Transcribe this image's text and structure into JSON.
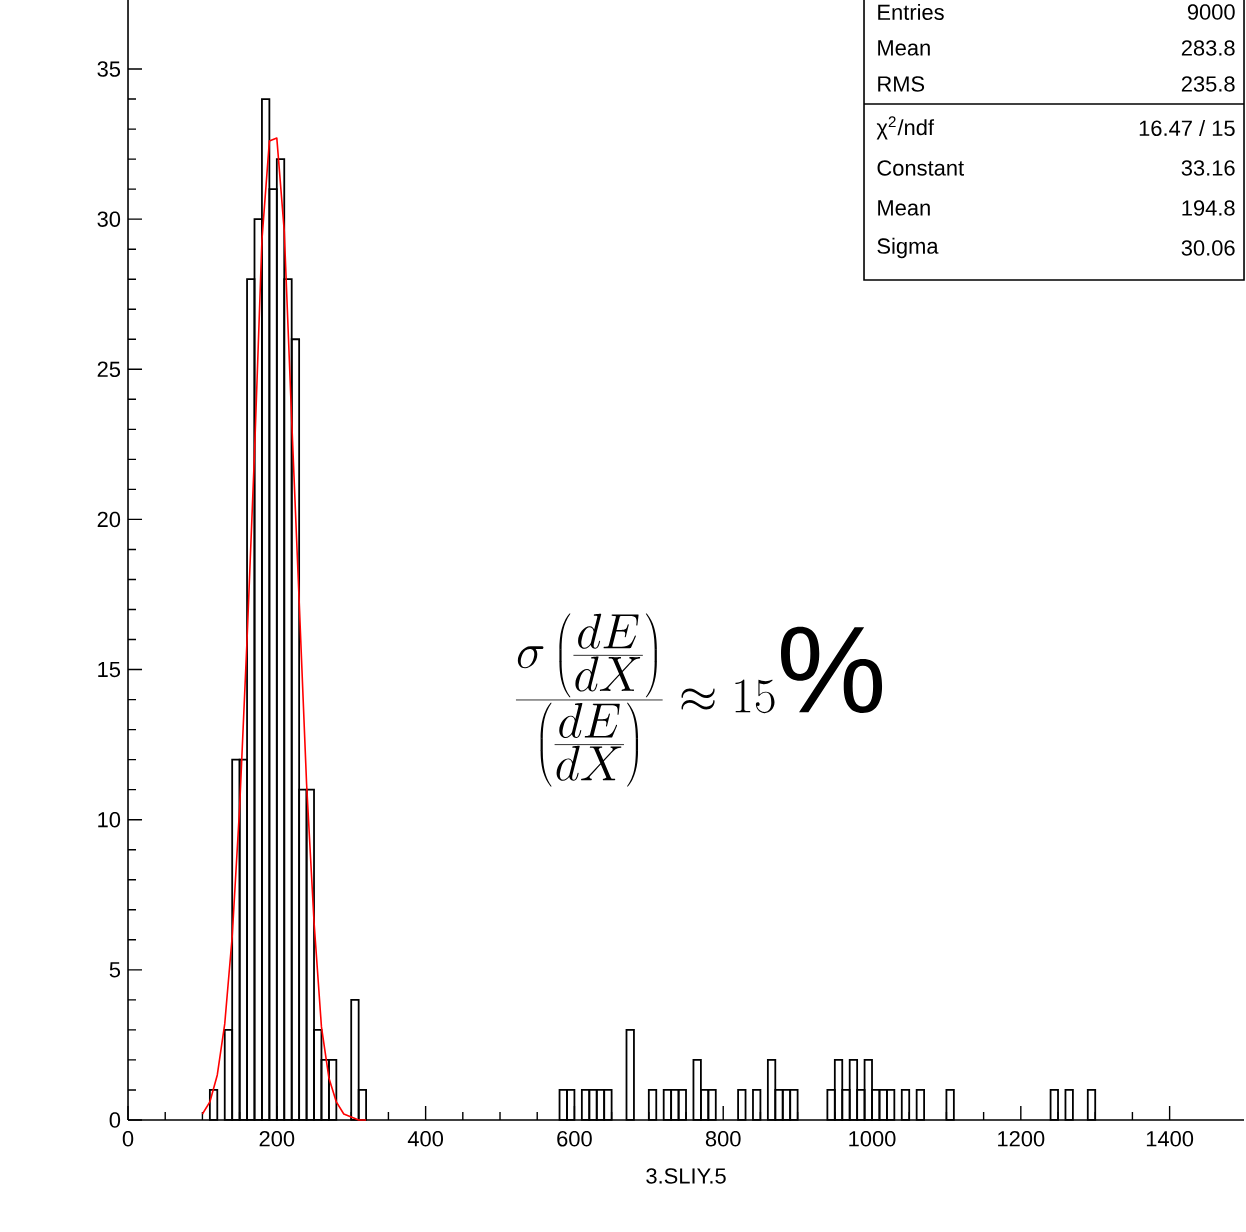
{
  "chart_data": {
    "type": "histogram",
    "xlabel": "3.SLIY.5",
    "bins": [
      110,
      120,
      130,
      140,
      150,
      160,
      170,
      180,
      190,
      200,
      210,
      220,
      230,
      240,
      250,
      260,
      270,
      280,
      290,
      300,
      310,
      320,
      330,
      340,
      350,
      360,
      370,
      380,
      390,
      400,
      410,
      420,
      430,
      440,
      450,
      460,
      470,
      480,
      490,
      500,
      510,
      520,
      530,
      540,
      550,
      560,
      570,
      580,
      590,
      600,
      610,
      620,
      630,
      640,
      650,
      660,
      670,
      680,
      690,
      700,
      710,
      720,
      730,
      740,
      750,
      760,
      770,
      780,
      790,
      800,
      810,
      820,
      830,
      840,
      850,
      860,
      870,
      880,
      890,
      900,
      910,
      920,
      930,
      940,
      950,
      960,
      970,
      980,
      990,
      1000,
      1010,
      1020,
      1030,
      1040,
      1050,
      1060,
      1070,
      1080,
      1090,
      1100,
      1110,
      1120,
      1130,
      1140,
      1150,
      1160,
      1170,
      1180,
      1190,
      1200,
      1210,
      1220,
      1230,
      1240,
      1250,
      1260,
      1270,
      1280,
      1290,
      1300
    ],
    "values": [
      1,
      null,
      3,
      12,
      12,
      28,
      30,
      34,
      31,
      32,
      28,
      26,
      11,
      11,
      3,
      2,
      2,
      null,
      null,
      4,
      1,
      null,
      null,
      null,
      null,
      null,
      null,
      null,
      null,
      null,
      null,
      null,
      null,
      null,
      null,
      null,
      null,
      null,
      null,
      null,
      null,
      null,
      null,
      null,
      null,
      null,
      null,
      1,
      1,
      null,
      1,
      1,
      1,
      1,
      null,
      null,
      3,
      null,
      null,
      1,
      null,
      1,
      1,
      1,
      null,
      2,
      1,
      1,
      null,
      null,
      null,
      1,
      null,
      1,
      null,
      2,
      1,
      1,
      1,
      null,
      null,
      null,
      null,
      1,
      2,
      1,
      2,
      1,
      2,
      1,
      1,
      1,
      null,
      1,
      null,
      1,
      null,
      null,
      null,
      1,
      null,
      null,
      null,
      null,
      null,
      null,
      null,
      null,
      null,
      null,
      null,
      null,
      null,
      1,
      null,
      1,
      null,
      null,
      1
    ],
    "color": "#000000",
    "series": [
      {
        "type": "line",
        "color": "#ff0000",
        "x": [
          100,
          110,
          120,
          130,
          140,
          150,
          160,
          170,
          180,
          190,
          200,
          210,
          220,
          230,
          240,
          250,
          260,
          270,
          280,
          290,
          300,
          310,
          320
        ],
        "values": [
          0.2,
          0.6,
          1.5,
          3.2,
          6.1,
          10.4,
          16,
          22.2,
          29.3,
          32.6,
          32.7,
          29.6,
          23.3,
          17.3,
          11.2,
          6.6,
          3.1,
          1.4,
          0.6,
          0.2,
          0.1,
          0,
          0
        ]
      }
    ],
    "xlim": [
      0,
      1500
    ],
    "ylim": [
      0,
      37.3
    ],
    "xticks": [
      0,
      200,
      400,
      600,
      800,
      1000,
      1200,
      1400
    ],
    "yticks": [
      0,
      5,
      10,
      15,
      20,
      25,
      30,
      35
    ],
    "annotations": [
      "Entries",
      "9000",
      "Mean",
      "283.8",
      "RMS",
      "235.8",
      "χ$^{2}$/ndf",
      "16.47  /  15",
      "Constant",
      "33.16",
      "Mean",
      "194.8",
      "Sigma",
      "30.06",
      "\\frac{\\sigma\\left(\\frac{dE}{dX}\\right)}{\\left(\\frac{dE}{dX}\\right)}\\approx 15\\%"
    ]
  }
}
